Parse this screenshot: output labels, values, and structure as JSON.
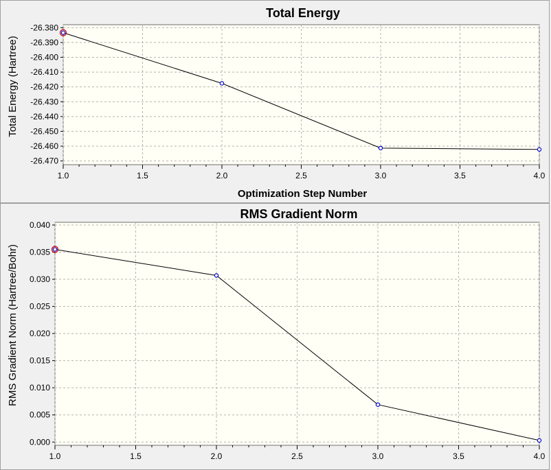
{
  "colors": {
    "plot_background": "#fffff5",
    "grid": "#b4b4b4",
    "line": "#000000",
    "marker": "#0000cc",
    "highlight_marker": "#cc0000",
    "panel_background": "#f0f0f0"
  },
  "chart_data": [
    {
      "type": "line",
      "title": "Total Energy",
      "xlabel": "Optimization Step Number",
      "ylabel": "Total Energy (Hartree)",
      "x": [
        1.0,
        2.0,
        3.0,
        4.0
      ],
      "series": [
        {
          "values": [
            -26.3834,
            -26.4176,
            -26.4613,
            -26.4622
          ]
        }
      ],
      "highlight_index": 0,
      "xlim": [
        1.0,
        4.0
      ],
      "ylim": [
        -26.4725,
        -26.378
      ],
      "x_ticks": [
        "1.0",
        "1.5",
        "2.0",
        "2.5",
        "3.0",
        "3.5",
        "4.0"
      ],
      "y_ticks": [
        "-26.380",
        "-26.390",
        "-26.400",
        "-26.410",
        "-26.420",
        "-26.430",
        "-26.440",
        "-26.450",
        "-26.460",
        "-26.470"
      ],
      "grid": true
    },
    {
      "type": "line",
      "title": "RMS Gradient Norm",
      "xlabel": "",
      "ylabel": "RMS Gradient Norm (Hartree/Bohr)",
      "x": [
        1.0,
        2.0,
        3.0,
        4.0
      ],
      "series": [
        {
          "values": [
            0.0355,
            0.0307,
            0.0069,
            0.0003
          ]
        }
      ],
      "highlight_index": 0,
      "xlim": [
        1.0,
        4.0
      ],
      "ylim": [
        -0.0006,
        0.0405
      ],
      "x_ticks": [
        "1.0",
        "1.5",
        "2.0",
        "2.5",
        "3.0",
        "3.5",
        "4.0"
      ],
      "y_ticks": [
        "0.040",
        "0.035",
        "0.030",
        "0.025",
        "0.020",
        "0.015",
        "0.010",
        "0.005",
        "0.000"
      ],
      "grid": true
    }
  ]
}
